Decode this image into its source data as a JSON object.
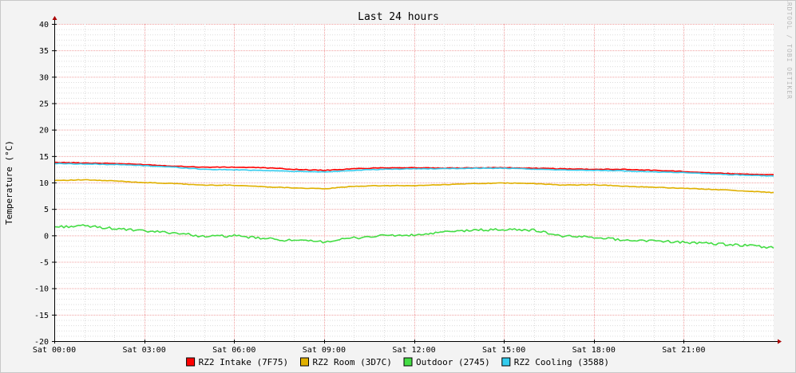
{
  "chart_data": {
    "type": "line",
    "title": "Last 24 hours",
    "ylabel": "Temperature (°C)",
    "watermark": "RRDTOOL / TOBI OETIKER",
    "ylim": [
      -20,
      40
    ],
    "yticks": [
      -20,
      -15,
      -10,
      -5,
      0,
      5,
      10,
      15,
      20,
      25,
      30,
      35,
      40
    ],
    "ytick_labels": [
      "-20",
      "-15",
      "-10",
      "-5",
      "0",
      "5",
      "10",
      "15",
      "20",
      "25",
      "30",
      "35",
      "40"
    ],
    "xlim": [
      0,
      24
    ],
    "xticks": [
      0,
      3,
      6,
      9,
      12,
      15,
      18,
      21
    ],
    "xtick_labels": [
      "Sat 00:00",
      "Sat 03:00",
      "Sat 06:00",
      "Sat 09:00",
      "Sat 12:00",
      "Sat 15:00",
      "Sat 18:00",
      "Sat 21:00"
    ],
    "grid": true,
    "legend_position": "bottom",
    "x": [
      0,
      1,
      2,
      3,
      4,
      5,
      6,
      7,
      8,
      9,
      10,
      11,
      12,
      13,
      14,
      15,
      16,
      17,
      18,
      19,
      20,
      21,
      22,
      23,
      24
    ],
    "series": [
      {
        "name": "RZ2 Intake (7F75)",
        "color": "#ff0000",
        "values": [
          13.8,
          13.7,
          13.6,
          13.4,
          13.1,
          12.9,
          12.9,
          12.8,
          12.5,
          12.3,
          12.6,
          12.8,
          12.8,
          12.7,
          12.8,
          12.8,
          12.7,
          12.6,
          12.5,
          12.5,
          12.3,
          12.1,
          11.8,
          11.6,
          11.5
        ]
      },
      {
        "name": "RZ2 Room (3D7C)",
        "color": "#e0b000",
        "values": [
          10.4,
          10.5,
          10.3,
          10.0,
          9.8,
          9.5,
          9.5,
          9.2,
          9.0,
          8.8,
          9.3,
          9.4,
          9.4,
          9.6,
          9.8,
          9.9,
          9.8,
          9.5,
          9.6,
          9.3,
          9.1,
          8.9,
          8.7,
          8.4,
          8.1
        ]
      },
      {
        "name": "Outdoor (2745)",
        "color": "#44dd44",
        "values": [
          1.6,
          1.8,
          1.3,
          0.8,
          0.5,
          -0.2,
          -0.1,
          -0.6,
          -1.0,
          -1.2,
          -0.5,
          0.0,
          0.0,
          0.6,
          1.0,
          1.1,
          1.0,
          -0.2,
          -0.3,
          -0.9,
          -1.0,
          -1.3,
          -1.6,
          -1.9,
          -2.3
        ]
      },
      {
        "name": "RZ2 Cooling (3588)",
        "color": "#33ccee",
        "values": [
          13.6,
          13.5,
          13.4,
          13.2,
          12.9,
          12.5,
          12.4,
          12.3,
          12.1,
          12.0,
          12.3,
          12.5,
          12.6,
          12.6,
          12.7,
          12.7,
          12.5,
          12.4,
          12.3,
          12.2,
          12.0,
          11.9,
          11.6,
          11.4,
          11.2
        ]
      }
    ]
  }
}
